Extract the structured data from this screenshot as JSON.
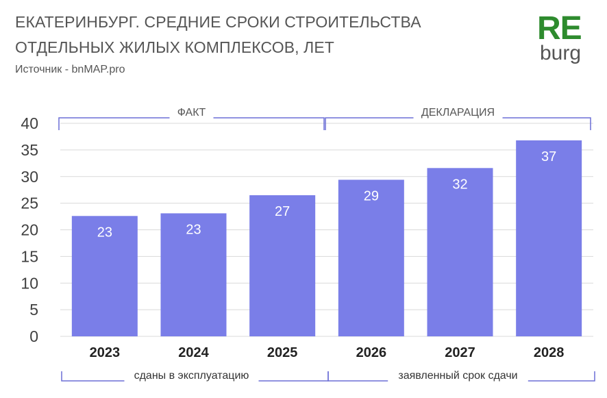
{
  "header": {
    "title_line1": "ЕКАТЕРИНБУРГ. СРЕДНИЕ СРОКИ СТРОИТЕЛЬСТВА",
    "title_line2": "ОТДЕЛЬНЫХ ЖИЛЫХ КОМПЛЕКСОВ, ЛЕТ",
    "source": "Источник - bnMAP.pro"
  },
  "logo": {
    "top": "RE",
    "bottom": "burg",
    "color": "#2e8b2e"
  },
  "groups": [
    {
      "label": "ФАКТ",
      "footer": "сданы в эксплуатацию",
      "from": 0,
      "to": 2
    },
    {
      "label": "ДЕКЛАРАЦИЯ",
      "footer": "заявленный срок сдачи",
      "from": 3,
      "to": 5
    }
  ],
  "colors": {
    "bar": "#7a7ee8",
    "bracket": "#6b6fd6",
    "grid": "#d9d9d9"
  },
  "chart_data": {
    "type": "bar",
    "categories": [
      "2023",
      "2024",
      "2025",
      "2026",
      "2027",
      "2028"
    ],
    "values": [
      22.6,
      23.1,
      26.5,
      29.4,
      31.6,
      36.8
    ],
    "data_labels": [
      "23",
      "23",
      "27",
      "29",
      "32",
      "37"
    ],
    "ylim": [
      0,
      40
    ],
    "yticks": [
      0,
      5,
      10,
      15,
      20,
      25,
      30,
      35,
      40
    ],
    "grid": true,
    "legend": "none"
  }
}
